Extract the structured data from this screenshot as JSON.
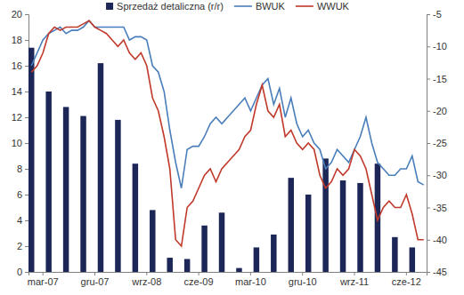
{
  "chart_data": {
    "type": "bar",
    "legend": "top",
    "grid": false,
    "categories": [
      null,
      null,
      "mar-07",
      null,
      null,
      null,
      null,
      null,
      null,
      null,
      null,
      "gru-07",
      null,
      null,
      null,
      null,
      null,
      null,
      null,
      null,
      "wrz-08",
      null,
      null,
      null,
      null,
      null,
      null,
      null,
      null,
      "cze-09",
      null,
      null,
      null,
      null,
      null,
      null,
      null,
      null,
      "mar-10",
      null,
      null,
      null,
      null,
      null,
      null,
      null,
      null,
      "gru-10",
      null,
      null,
      null,
      null,
      null,
      null,
      null,
      null,
      "wrz-11",
      null,
      null,
      null,
      null,
      null,
      null,
      null,
      null,
      "cze-12",
      null,
      null,
      null
    ],
    "ylim": [
      0,
      20
    ],
    "yticks": [
      0,
      2,
      4,
      6,
      8,
      10,
      12,
      14,
      16,
      18,
      20
    ],
    "y2lim": [
      -45,
      -5
    ],
    "y2ticks": [
      -45,
      -40,
      -35,
      -30,
      -25,
      -20,
      -15,
      -10,
      -5
    ],
    "series": [
      {
        "name": "Sprzedaż detaliczna (r/r)",
        "type": "bar",
        "color": "#1c2757",
        "values": [
          17.4,
          null,
          null,
          14.0,
          null,
          null,
          12.8,
          null,
          null,
          12.1,
          null,
          null,
          16.2,
          null,
          null,
          11.8,
          null,
          null,
          8.4,
          null,
          null,
          4.8,
          null,
          null,
          1.1,
          null,
          null,
          1.0,
          null,
          null,
          3.6,
          null,
          null,
          4.6,
          null,
          null,
          0.3,
          null,
          null,
          1.9,
          null,
          null,
          2.9,
          null,
          null,
          7.3,
          null,
          null,
          6.0,
          null,
          null,
          8.8,
          null,
          null,
          7.1,
          null,
          null,
          6.9,
          null,
          null,
          8.4,
          null,
          null,
          2.7,
          null,
          null,
          1.9,
          null,
          null
        ]
      },
      {
        "name": "BWUK",
        "type": "line",
        "axis": "y2",
        "color": "#4a7ebb",
        "values": [
          -13,
          -11,
          -9,
          -8,
          -7.5,
          -7,
          -8,
          -7.5,
          -7.5,
          -7,
          -6,
          -7,
          -7,
          -7,
          -7,
          -7,
          -7,
          -9,
          -8.5,
          -8.5,
          -9,
          -13,
          -14,
          -17,
          -23,
          -28,
          -32,
          -26,
          -25.5,
          -25.5,
          -24,
          -22,
          -21,
          -22,
          -21,
          -20,
          -19,
          -18,
          -20,
          -18,
          -16,
          -15,
          -19,
          -16.5,
          -21,
          -18,
          -22,
          -24,
          -23,
          -25,
          -26,
          -29,
          -28,
          -26,
          -27,
          -28,
          -26,
          -24,
          -21,
          -25,
          -28,
          -29,
          -30,
          -30,
          -29,
          -29,
          -27,
          -31,
          -31.5
        ]
      },
      {
        "name": "WWUK",
        "type": "line",
        "axis": "y2",
        "color": "#c0392b",
        "values": [
          -14,
          -13,
          -11,
          -8,
          -7,
          -7.5,
          -7,
          -7,
          -7,
          -6.5,
          -6,
          -7,
          -7.5,
          -8,
          -9,
          -10,
          -9,
          -11,
          -12,
          -11,
          -13,
          -18,
          -20,
          -24,
          -29,
          -40,
          -41,
          -35,
          -34,
          -32,
          -30,
          -29,
          -31,
          -29,
          -28,
          -27,
          -26,
          -24,
          -23,
          -19,
          -16,
          -20,
          -21,
          -19,
          -24,
          -23,
          -25,
          -26,
          -25,
          -26,
          -30,
          -32,
          -31,
          -29,
          -30,
          -29,
          -26,
          -27,
          -29,
          -33,
          -37,
          -35,
          -34,
          -35,
          -35,
          -33,
          -36,
          -40,
          -40
        ]
      }
    ]
  }
}
